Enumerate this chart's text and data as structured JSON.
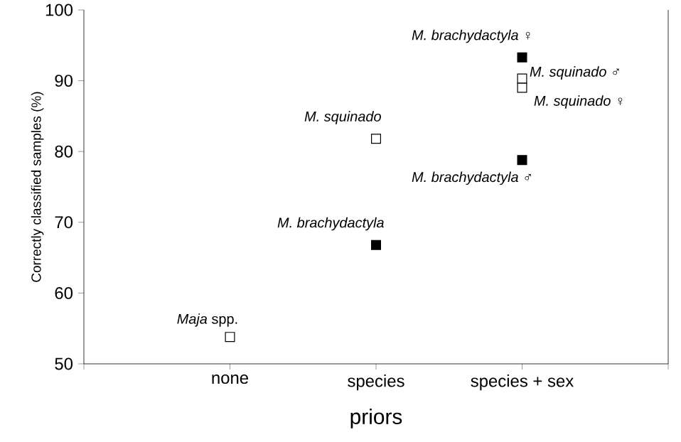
{
  "chart_data": {
    "type": "scatter",
    "xlabel": "priors",
    "ylabel": "Correctly classified samples (%)",
    "categories": [
      "none",
      "species",
      "species + sex"
    ],
    "series": [
      {
        "color": "#ffffff",
        "x": [
          "none",
          "species",
          "species + sex",
          "species + sex"
        ],
        "values": [
          53.8,
          81.8,
          90.3,
          89.0
        ]
      },
      {
        "color": "#000000",
        "x": [
          "species",
          "species + sex",
          "species + sex"
        ],
        "values": [
          66.8,
          93.3,
          78.8
        ]
      }
    ],
    "marker": "square",
    "ylim": [
      50,
      100
    ],
    "yticks": [
      50,
      60,
      70,
      80,
      90,
      100
    ],
    "grid": false,
    "annotations": [
      {
        "text": "*Maja* spp.",
        "x": "none",
        "y": 53.8
      },
      {
        "text": "*M. squinado*",
        "x": "species",
        "y": 81.8
      },
      {
        "text": "*M. brachydactyla*",
        "x": "species",
        "y": 66.8
      },
      {
        "text": "*M. brachydactyla* ♀",
        "x": "species + sex",
        "y": 93.3
      },
      {
        "text": "*M. squinado* ♂",
        "x": "species + sex",
        "y": 90.3
      },
      {
        "text": "*M. squinado* ♀",
        "x": "species + sex",
        "y": 89.0
      },
      {
        "text": "*M. brachydactyla* ♂",
        "x": "species + sex",
        "y": 78.8
      }
    ]
  }
}
